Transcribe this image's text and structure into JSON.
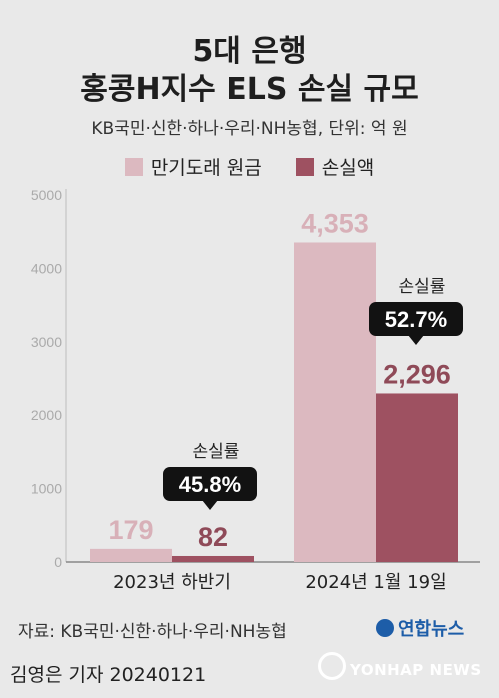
{
  "header": {
    "title_line1": "5대 은행",
    "title_line2": "홍콩H지수 ELS 손실 규모",
    "subtitle": "KB국민·신한·하나·우리·NH농협, 단위: 억 원"
  },
  "chart_data": {
    "type": "bar",
    "categories": [
      "2023년 하반기",
      "2024년 1월 19일"
    ],
    "series": [
      {
        "name": "만기도래 원금",
        "values": [
          179,
          4353
        ],
        "labels": [
          "179",
          "4,353"
        ],
        "color": "#dcb9c0",
        "label_color": "#d8b0b8"
      },
      {
        "name": "손실액",
        "values": [
          82,
          2296
        ],
        "labels": [
          "82",
          "2,296"
        ],
        "color": "#9e5161",
        "label_color": "#8f4a58"
      }
    ],
    "yticks": [
      "0",
      "1000",
      "2000",
      "3000",
      "4000",
      "5000"
    ],
    "ylim": [
      0,
      5000
    ],
    "annotations": [
      {
        "category": "2023년 하반기",
        "caption": "손실률",
        "value": "45.8%"
      },
      {
        "category": "2024년 1월 19일",
        "caption": "손실률",
        "value": "52.7%"
      }
    ],
    "grid": false,
    "legend": "top-center"
  },
  "footer": {
    "source": "자료: KB국민·신한·하나·우리·NH농협",
    "brand": "연합뉴스",
    "reporter": "김영은 기자  20240121",
    "watermark": "YONHAP NEWS"
  }
}
